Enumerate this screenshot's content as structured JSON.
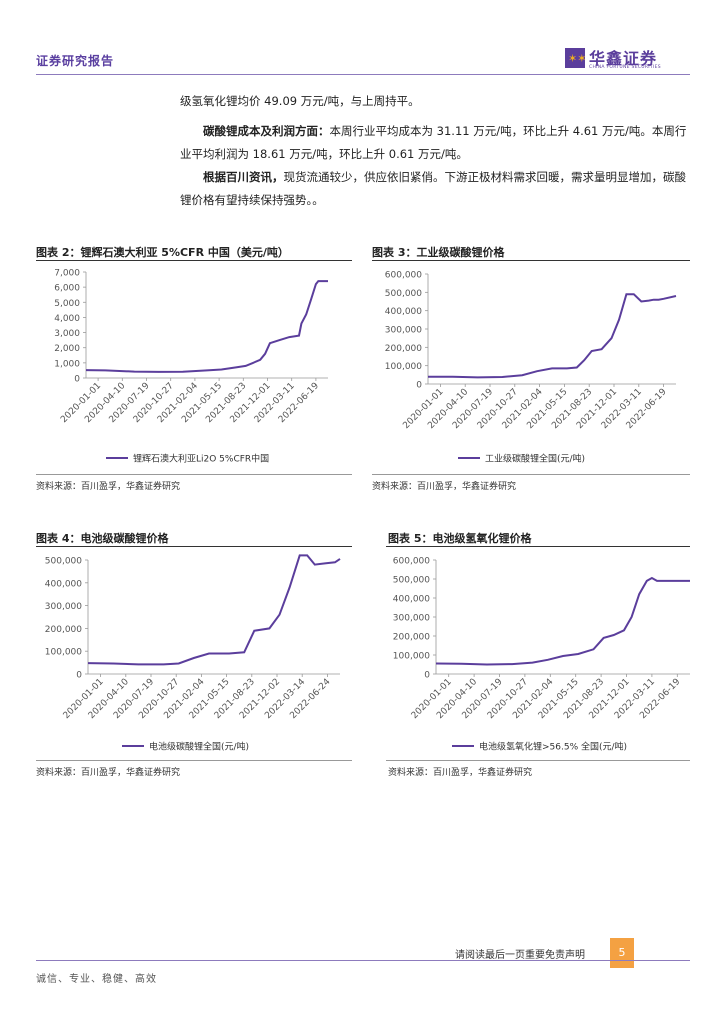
{
  "header": {
    "title": "证券研究报告",
    "logo_cn": "华鑫证券",
    "logo_en": "CHINA FORTUNE SECURITIES"
  },
  "paragraphs": {
    "p1": "级氢氧化锂均价 49.09 万元/吨，与上周持平。",
    "p2_bold": "碳酸锂成本及利润方面：",
    "p2_text": "本周行业平均成本为 31.11 万元/吨，环比上升 4.61 万元/吨。本周行业平均利润为 18.61 万元/吨，环比上升 0.61 万元/吨。",
    "p3_bold": "根据百川资讯，",
    "p3_text": "现货流通较少，供应依旧紧俏。下游正极材料需求回暖，需求量明显增加，碳酸锂价格有望持续保持强势。。"
  },
  "figures": {
    "f2": {
      "title": "图表 2：锂辉石澳大利亚 5%CFR 中国（美元/吨）",
      "source": "资料来源：百川盈孚，华鑫证券研究"
    },
    "f3": {
      "title": "图表 3：工业级碳酸锂价格",
      "source": "资料来源：百川盈孚，华鑫证券研究"
    },
    "f4": {
      "title": "图表 4：电池级碳酸锂价格",
      "source": "资料来源：百川盈孚，华鑫证券研究"
    },
    "f5": {
      "title": "图表 5：电池级氢氧化锂价格",
      "source": "资料来源：百川盈孚，华鑫证券研究"
    }
  },
  "chart_data": [
    {
      "type": "line",
      "id": "c2",
      "ylim": [
        0,
        7000
      ],
      "yticks": [
        0,
        1000,
        2000,
        3000,
        4000,
        5000,
        6000,
        7000
      ],
      "ytick_labels": [
        "0",
        "1,000",
        "2,000",
        "3,000",
        "4,000",
        "5,000",
        "6,000",
        "7,000"
      ],
      "xticks": [
        "2020-01-01",
        "2020-04-10",
        "2020-07-19",
        "2020-10-27",
        "2021-02-04",
        "2021-05-15",
        "2021-08-23",
        "2021-12-01",
        "2022-03-11",
        "2022-06-19"
      ],
      "series": [
        {
          "name": "锂辉石澳大利亚Li2O 5%CFR中国",
          "color": "#5b3e9c",
          "x": [
            0,
            0.08,
            0.2,
            0.3,
            0.4,
            0.5,
            0.56,
            0.62,
            0.66,
            0.69,
            0.72,
            0.74,
            0.76,
            0.8,
            0.84,
            0.88,
            0.89,
            0.91,
            0.93,
            0.95,
            0.96,
            0.975,
            0.99,
            1.0
          ],
          "y": [
            520,
            500,
            420,
            400,
            410,
            500,
            560,
            700,
            800,
            1000,
            1200,
            1600,
            2300,
            2500,
            2700,
            2800,
            3600,
            4200,
            5200,
            6200,
            6400,
            6400,
            6400,
            6400
          ]
        }
      ]
    },
    {
      "type": "line",
      "id": "c3",
      "ylim": [
        0,
        600000
      ],
      "yticks": [
        0,
        100000,
        200000,
        300000,
        400000,
        500000,
        600000
      ],
      "ytick_labels": [
        "0",
        "100,000",
        "200,000",
        "300,000",
        "400,000",
        "500,000",
        "600,000"
      ],
      "xticks": [
        "2020-01-01",
        "2020-04-10",
        "2020-07-19",
        "2020-10-27",
        "2021-02-04",
        "2021-05-15",
        "2021-08-23",
        "2021-12-01",
        "2022-03-11",
        "2022-06-19"
      ],
      "series": [
        {
          "name": "工业级碳酸锂全国(元/吨)",
          "color": "#5b3e9c",
          "x": [
            0,
            0.1,
            0.2,
            0.3,
            0.38,
            0.44,
            0.5,
            0.56,
            0.6,
            0.63,
            0.66,
            0.7,
            0.74,
            0.77,
            0.8,
            0.83,
            0.86,
            0.89,
            0.91,
            0.93,
            0.95,
            1.0
          ],
          "y": [
            40000,
            40000,
            36000,
            38000,
            48000,
            70000,
            85000,
            85000,
            90000,
            130000,
            180000,
            190000,
            250000,
            350000,
            490000,
            490000,
            450000,
            455000,
            460000,
            460000,
            465000,
            480000
          ]
        }
      ]
    },
    {
      "type": "line",
      "id": "c4",
      "ylim": [
        0,
        500000
      ],
      "yticks": [
        0,
        100000,
        200000,
        300000,
        400000,
        500000
      ],
      "ytick_labels": [
        "0",
        "100,000",
        "200,000",
        "300,000",
        "400,000",
        "500,000"
      ],
      "xticks": [
        "2020-01-01",
        "2020-04-10",
        "2020-07-19",
        "2020-10-27",
        "2021-02-04",
        "2021-05-15",
        "2021-08-23",
        "2021-12-02",
        "2022-03-14",
        "2022-06-24"
      ],
      "series": [
        {
          "name": "电池级碳酸锂全国(元/吨)",
          "color": "#5b3e9c",
          "x": [
            0,
            0.1,
            0.2,
            0.3,
            0.36,
            0.42,
            0.48,
            0.56,
            0.62,
            0.66,
            0.72,
            0.76,
            0.8,
            0.84,
            0.87,
            0.9,
            0.94,
            0.98,
            1.0
          ],
          "y": [
            48000,
            46000,
            42000,
            42000,
            46000,
            70000,
            90000,
            90000,
            95000,
            190000,
            200000,
            260000,
            380000,
            520000,
            520000,
            480000,
            485000,
            490000,
            505000
          ]
        }
      ]
    },
    {
      "type": "line",
      "id": "c5",
      "ylim": [
        0,
        600000
      ],
      "yticks": [
        0,
        100000,
        200000,
        300000,
        400000,
        500000,
        600000
      ],
      "ytick_labels": [
        "0",
        "100,000",
        "200,000",
        "300,000",
        "400,000",
        "500,000",
        "600,000"
      ],
      "xticks": [
        "2020-01-01",
        "2020-04-10",
        "2020-07-19",
        "2020-10-27",
        "2021-02-04",
        "2021-05-15",
        "2021-08-23",
        "2021-12-01",
        "2022-03-11",
        "2022-06-19"
      ],
      "series": [
        {
          "name": "电池级氢氧化锂>56.5% 全国(元/吨)",
          "color": "#5b3e9c",
          "x": [
            0,
            0.1,
            0.2,
            0.3,
            0.38,
            0.44,
            0.5,
            0.56,
            0.62,
            0.66,
            0.7,
            0.74,
            0.77,
            0.8,
            0.83,
            0.85,
            0.87,
            0.9,
            0.95,
            1.0
          ],
          "y": [
            55000,
            54000,
            50000,
            52000,
            60000,
            75000,
            95000,
            105000,
            130000,
            190000,
            205000,
            230000,
            300000,
            420000,
            490000,
            505000,
            490000,
            490000,
            490000,
            490000
          ]
        }
      ]
    }
  ],
  "footer": {
    "note": "请阅读最后一页重要免责声明",
    "page": "5",
    "motto": "诚信、专业、稳健、高效"
  }
}
